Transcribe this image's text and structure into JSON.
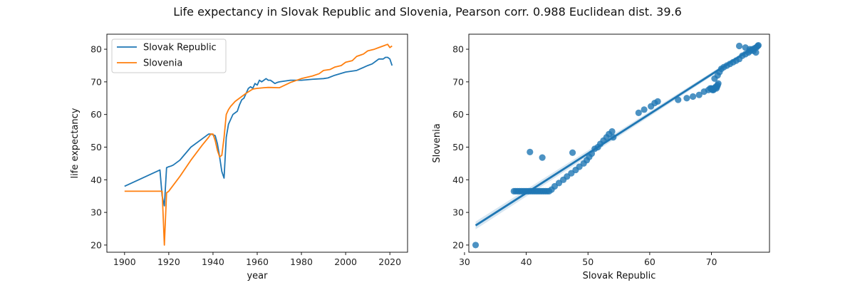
{
  "figure_title": "Life expectancy in Slovak Republic and Slovenia, Pearson corr. 0.988 Euclidean dist. 39.6",
  "colors": {
    "series1": "#1f77b4",
    "series2": "#ff7f0e",
    "axis": "#000000",
    "band": "#1f77b4"
  },
  "chart_data": [
    {
      "type": "line",
      "title": "",
      "xlabel": "year",
      "ylabel": "life expectancy",
      "xlim": [
        1892,
        2028
      ],
      "ylim": [
        17.8,
        84.6
      ],
      "xticks": [
        1900,
        1920,
        1940,
        1960,
        1980,
        2000,
        2020
      ],
      "yticks": [
        20,
        30,
        40,
        50,
        60,
        70,
        80
      ],
      "legend": "top-left",
      "grid": false,
      "series": [
        {
          "name": "Slovak Republic",
          "x": [
            1900,
            1916,
            1917,
            1918,
            1919,
            1920,
            1921,
            1922,
            1925,
            1930,
            1935,
            1938,
            1939,
            1940,
            1941,
            1942,
            1943,
            1944,
            1945,
            1946,
            1947,
            1948,
            1949,
            1950,
            1951,
            1952,
            1953,
            1954,
            1955,
            1956,
            1957,
            1958,
            1959,
            1960,
            1961,
            1962,
            1963,
            1964,
            1965,
            1966,
            1967,
            1968,
            1969,
            1970,
            1975,
            1980,
            1985,
            1990,
            1992,
            1995,
            2000,
            2005,
            2010,
            2012,
            2014,
            2015,
            2016,
            2017,
            2018,
            2019,
            2020,
            2021
          ],
          "y": [
            38,
            43,
            35,
            32,
            43.7,
            44,
            44.2,
            44.5,
            46,
            50,
            52.5,
            54,
            54,
            53.8,
            53.5,
            51,
            47,
            42.5,
            40.5,
            53,
            57,
            58.5,
            60,
            60.5,
            61,
            63,
            64.5,
            65,
            66.5,
            68,
            68.5,
            68,
            69.5,
            69,
            70.5,
            70,
            70.5,
            71,
            70.5,
            70.5,
            70,
            69.5,
            69.8,
            70,
            70.5,
            70.5,
            70.8,
            71,
            71.2,
            72,
            73,
            73.5,
            75,
            75.5,
            76.5,
            77,
            77,
            77,
            77.5,
            77.5,
            77,
            75
          ]
        },
        {
          "name": "Slovenia",
          "x": [
            1900,
            1916,
            1917,
            1918,
            1919,
            1920,
            1925,
            1930,
            1935,
            1938,
            1939,
            1940,
            1941,
            1942,
            1943,
            1944,
            1945,
            1946,
            1947,
            1948,
            1950,
            1952,
            1955,
            1958,
            1960,
            1963,
            1965,
            1970,
            1975,
            1980,
            1985,
            1988,
            1990,
            1993,
            1995,
            1998,
            2000,
            2003,
            2005,
            2008,
            2010,
            2013,
            2015,
            2017,
            2019,
            2020,
            2021
          ],
          "y": [
            36.5,
            36.5,
            36.5,
            20,
            36,
            36.5,
            41,
            46,
            50.5,
            53,
            54,
            54,
            52,
            49,
            47,
            47.5,
            53,
            60,
            61.5,
            62.5,
            64,
            65,
            66.5,
            67.8,
            68,
            68.2,
            68.3,
            68.2,
            69.8,
            71,
            71.8,
            72.5,
            73.5,
            73.8,
            74.5,
            75,
            76,
            76.5,
            77.8,
            78.5,
            79.5,
            80,
            80.5,
            81,
            81.5,
            80.5,
            81
          ]
        }
      ]
    },
    {
      "type": "scatter",
      "title": "",
      "xlabel": "Slovak Republic",
      "ylabel": "Slovenia",
      "xlim": [
        30.7,
        79.4
      ],
      "ylim": [
        17.8,
        84.6
      ],
      "xticks": [
        30,
        40,
        50,
        60,
        70
      ],
      "yticks": [
        20,
        30,
        40,
        50,
        60,
        70,
        80
      ],
      "grid": false,
      "points": {
        "x": [
          31.8,
          38,
          38.3,
          38.6,
          38.9,
          39.2,
          39.5,
          39.8,
          40.1,
          40.4,
          40.7,
          41,
          41.3,
          41.6,
          41.9,
          42.2,
          42.5,
          42.8,
          43.1,
          43.4,
          43.7,
          44.1,
          44.6,
          45.3,
          46,
          46.6,
          47.3,
          48,
          48.6,
          49.3,
          49.8,
          50.2,
          50.6,
          51.1,
          51.6,
          52,
          52.5,
          53,
          53.4,
          53.9,
          54.1,
          40.6,
          42.6,
          47.5,
          58.2,
          59.1,
          60.2,
          60.8,
          61.3,
          64.6,
          66,
          67,
          68,
          68.8,
          69.5,
          69.8,
          70,
          70.1,
          70.2,
          70.3,
          70.4,
          70.5,
          70.6,
          70.7,
          70.8,
          70.9,
          71,
          71.1,
          70.5,
          71,
          71.3,
          71.6,
          72,
          72.5,
          73,
          73.5,
          74,
          74.5,
          75,
          75.5,
          76,
          76.3,
          76.6,
          77,
          77.3,
          77.5,
          77.6,
          74.5,
          75.5,
          76.2,
          76.8,
          77.2
        ],
        "y": [
          20,
          36.5,
          36.5,
          36.5,
          36.5,
          36.5,
          36.5,
          36.5,
          36.5,
          36.5,
          36.5,
          36.5,
          36.5,
          36.5,
          36.5,
          36.5,
          36.5,
          36.5,
          36.5,
          36.5,
          36.5,
          37,
          38,
          39,
          40,
          41,
          42,
          43,
          44,
          45,
          46,
          47,
          48,
          49.5,
          50,
          51,
          52,
          53,
          54,
          54.8,
          53,
          48.5,
          46.8,
          48.3,
          60.5,
          61.5,
          62.5,
          63.5,
          64,
          64.5,
          65,
          65.5,
          66,
          67,
          67.5,
          68,
          68,
          67.8,
          67.5,
          67.5,
          68,
          68,
          68.2,
          68.5,
          68,
          68.5,
          69,
          69.5,
          71,
          72,
          73,
          74,
          74.5,
          75,
          75.5,
          76,
          76.5,
          77,
          78,
          78.5,
          79,
          79.5,
          80,
          80.3,
          80.6,
          81,
          81.2,
          81,
          80.5,
          80,
          79.5,
          79
        ]
      },
      "regression": {
        "x": [
          31.8,
          77.6
        ],
        "y": [
          26.0,
          81.5
        ],
        "ci_half_width_at_ends": [
          1.2,
          0.5
        ]
      }
    }
  ]
}
